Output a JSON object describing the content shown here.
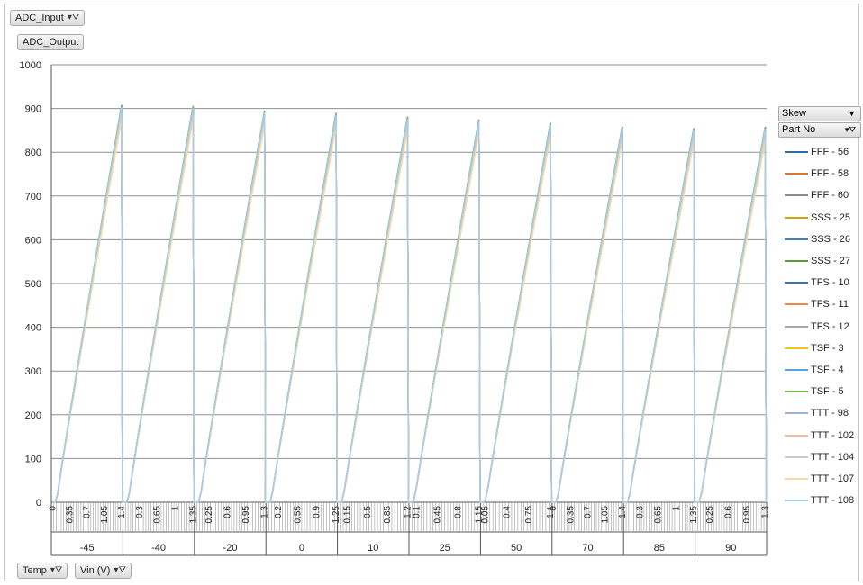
{
  "filters": {
    "top": "ADC_Input",
    "values_field": "ADC_Output",
    "bottom": [
      "Temp",
      "Vin (V)"
    ]
  },
  "legend": {
    "dropdown": "Skew",
    "header": "Part No"
  },
  "colors": {
    "FFF - 56": "#2e6da4",
    "FFF - 58": "#d7762c",
    "FFF - 60": "#8c8c8c",
    "SSS - 25": "#d2a30f",
    "SSS - 26": "#3e7fbf",
    "SSS - 27": "#5a9a3a",
    "TFS - 10": "#3a6fb5",
    "TFS - 11": "#e88a49",
    "TFS - 12": "#a6a6a6",
    "TSF - 3": "#f5c11f",
    "TSF - 4": "#5aa2de",
    "TSF - 5": "#6ab34a",
    "TTT - 98": "#9fb3d9",
    "TTT - 102": "#f2b8a2",
    "TTT - 104": "#cccccc",
    "TTT - 107": "#fad7a0",
    "TTT - 108": "#a9cbe8"
  },
  "chart_data": {
    "type": "line",
    "title": "",
    "xlabel": "",
    "ylabel": "",
    "ylim": [
      0,
      1000
    ],
    "yticks": [
      0,
      100,
      200,
      300,
      400,
      500,
      600,
      700,
      800,
      900,
      1000
    ],
    "grid": true,
    "legend_position": "right",
    "groups": [
      {
        "temp": "-45",
        "vin_start": 0,
        "vin_end": 1.4,
        "peak": 905,
        "labels": [
          "0",
          "0.35",
          "0.7",
          "1.05",
          "1.4"
        ]
      },
      {
        "temp": "-40",
        "vin_start": 0,
        "vin_end": 1.35,
        "peak": 903,
        "labels": [
          "0.3",
          "0.65",
          "1",
          "1.35"
        ]
      },
      {
        "temp": "-20",
        "vin_start": 0,
        "vin_end": 1.3,
        "peak": 892,
        "labels": [
          "0.25",
          "0.6",
          "0.95",
          "1.3"
        ]
      },
      {
        "temp": "0",
        "vin_start": 0,
        "vin_end": 1.25,
        "peak": 887,
        "labels": [
          "0.2",
          "0.55",
          "0.9",
          "1.25"
        ]
      },
      {
        "temp": "10",
        "vin_start": 0,
        "vin_end": 1.2,
        "peak": 878,
        "labels": [
          "0.15",
          "0.5",
          "0.85",
          "1.2"
        ]
      },
      {
        "temp": "25",
        "vin_start": 0,
        "vin_end": 1.15,
        "peak": 872,
        "labels": [
          "0.1",
          "0.45",
          "0.8",
          "1.15"
        ]
      },
      {
        "temp": "50",
        "vin_start": 0,
        "vin_end": 1.1,
        "peak": 864,
        "labels": [
          "0.05",
          "0.4",
          "0.75",
          "1.1"
        ]
      },
      {
        "temp": "70",
        "vin_start": 0,
        "vin_end": 1.4,
        "peak": 856,
        "labels": [
          "0",
          "0.35",
          "0.7",
          "1.05",
          "1.4"
        ]
      },
      {
        "temp": "85",
        "vin_start": 0,
        "vin_end": 1.35,
        "peak": 852,
        "labels": [
          "0.3",
          "0.65",
          "1",
          "1.35"
        ]
      },
      {
        "temp": "90",
        "vin_start": 0,
        "vin_end": 1.3,
        "peak": 855,
        "labels": [
          "0.25",
          "0.6",
          "0.95",
          "1.3"
        ]
      }
    ],
    "series": [
      {
        "name": "FFF - 56",
        "offset": 0
      },
      {
        "name": "FFF - 58",
        "offset": -8
      },
      {
        "name": "FFF - 60",
        "offset": -12
      },
      {
        "name": "SSS - 25",
        "offset": -20
      },
      {
        "name": "SSS - 26",
        "offset": -4
      },
      {
        "name": "SSS - 27",
        "offset": 3
      },
      {
        "name": "TFS - 10",
        "offset": -2
      },
      {
        "name": "TFS - 11",
        "offset": -10
      },
      {
        "name": "TFS - 12",
        "offset": -14
      },
      {
        "name": "TSF - 3",
        "offset": -22
      },
      {
        "name": "TSF - 4",
        "offset": 1
      },
      {
        "name": "TSF - 5",
        "offset": 2
      },
      {
        "name": "TTT - 98",
        "offset": -6
      },
      {
        "name": "TTT - 102",
        "offset": -16
      },
      {
        "name": "TTT - 104",
        "offset": -18
      },
      {
        "name": "TTT - 107",
        "offset": -28
      },
      {
        "name": "TTT - 108",
        "offset": -1
      }
    ]
  }
}
